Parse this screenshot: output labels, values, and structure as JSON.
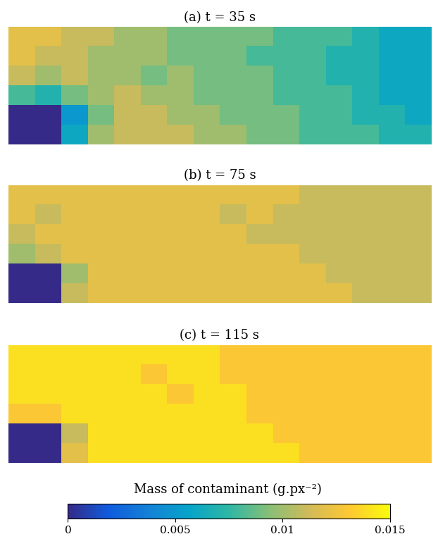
{
  "chart_data": [
    {
      "type": "heatmap",
      "title": "(a) t = 35 s",
      "tick_labels": false,
      "cells": [
        [
          0.012,
          0.012,
          0.011,
          0.011,
          0.01,
          0.01,
          0.009,
          0.009,
          0.009,
          0.009,
          0.008,
          0.008,
          0.008,
          0.007,
          0.006,
          0.006
        ],
        [
          0.012,
          0.011,
          0.011,
          0.01,
          0.01,
          0.01,
          0.009,
          0.009,
          0.009,
          0.008,
          0.008,
          0.008,
          0.007,
          0.007,
          0.006,
          0.006
        ],
        [
          0.011,
          0.01,
          0.011,
          0.01,
          0.01,
          0.009,
          0.01,
          0.009,
          0.009,
          0.009,
          0.008,
          0.008,
          0.007,
          0.007,
          0.006,
          0.006
        ],
        [
          0.008,
          0.007,
          0.009,
          0.01,
          0.011,
          0.01,
          0.01,
          0.009,
          0.009,
          0.009,
          0.008,
          0.008,
          0.008,
          0.007,
          0.006,
          0.006
        ],
        [
          0,
          0,
          0.005,
          0.009,
          0.011,
          0.011,
          0.01,
          0.01,
          0.009,
          0.009,
          0.009,
          0.008,
          0.008,
          0.007,
          0.007,
          0.006
        ],
        [
          0,
          0,
          0.006,
          0.01,
          0.011,
          0.011,
          0.011,
          0.01,
          0.01,
          0.009,
          0.009,
          0.008,
          0.008,
          0.008,
          0.007,
          0.007
        ]
      ]
    },
    {
      "type": "heatmap",
      "title": "(b) t = 75 s",
      "tick_labels": false,
      "cells": [
        [
          0.012,
          0.012,
          0.012,
          0.012,
          0.012,
          0.012,
          0.012,
          0.012,
          0.012,
          0.012,
          0.012,
          0.011,
          0.011,
          0.011,
          0.011,
          0.011
        ],
        [
          0.012,
          0.011,
          0.012,
          0.012,
          0.012,
          0.012,
          0.012,
          0.012,
          0.011,
          0.012,
          0.011,
          0.011,
          0.011,
          0.011,
          0.011,
          0.011
        ],
        [
          0.011,
          0.012,
          0.012,
          0.012,
          0.012,
          0.012,
          0.012,
          0.012,
          0.012,
          0.011,
          0.011,
          0.011,
          0.011,
          0.011,
          0.011,
          0.011
        ],
        [
          0.01,
          0.011,
          0.012,
          0.012,
          0.012,
          0.012,
          0.012,
          0.012,
          0.012,
          0.012,
          0.012,
          0.011,
          0.011,
          0.011,
          0.011,
          0.011
        ],
        [
          0,
          0,
          0.01,
          0.012,
          0.012,
          0.012,
          0.012,
          0.012,
          0.012,
          0.012,
          0.012,
          0.012,
          0.011,
          0.011,
          0.011,
          0.011
        ],
        [
          0,
          0,
          0.011,
          0.012,
          0.012,
          0.012,
          0.012,
          0.012,
          0.012,
          0.012,
          0.012,
          0.012,
          0.012,
          0.011,
          0.011,
          0.011
        ]
      ]
    },
    {
      "type": "heatmap",
      "title": "(c) t = 115 s",
      "tick_labels": false,
      "cells": [
        [
          0.014,
          0.014,
          0.014,
          0.014,
          0.014,
          0.014,
          0.014,
          0.014,
          0.013,
          0.013,
          0.013,
          0.013,
          0.013,
          0.013,
          0.013,
          0.013
        ],
        [
          0.014,
          0.014,
          0.014,
          0.014,
          0.014,
          0.013,
          0.014,
          0.014,
          0.013,
          0.013,
          0.013,
          0.013,
          0.013,
          0.013,
          0.013,
          0.013
        ],
        [
          0.014,
          0.014,
          0.014,
          0.014,
          0.014,
          0.014,
          0.013,
          0.014,
          0.014,
          0.013,
          0.013,
          0.013,
          0.013,
          0.013,
          0.013,
          0.013
        ],
        [
          0.013,
          0.013,
          0.014,
          0.014,
          0.014,
          0.014,
          0.014,
          0.014,
          0.014,
          0.013,
          0.013,
          0.013,
          0.013,
          0.013,
          0.013,
          0.013
        ],
        [
          0,
          0,
          0.011,
          0.014,
          0.014,
          0.014,
          0.014,
          0.014,
          0.014,
          0.014,
          0.013,
          0.013,
          0.013,
          0.013,
          0.013,
          0.013
        ],
        [
          0,
          0,
          0.012,
          0.014,
          0.014,
          0.014,
          0.014,
          0.014,
          0.014,
          0.014,
          0.014,
          0.013,
          0.013,
          0.013,
          0.013,
          0.013
        ]
      ]
    }
  ],
  "colorbar": {
    "label": "Mass of contaminant (g.px⁻²)",
    "range": [
      0,
      0.015
    ],
    "ticks": [
      0,
      0.005,
      0.01,
      0.015
    ]
  }
}
